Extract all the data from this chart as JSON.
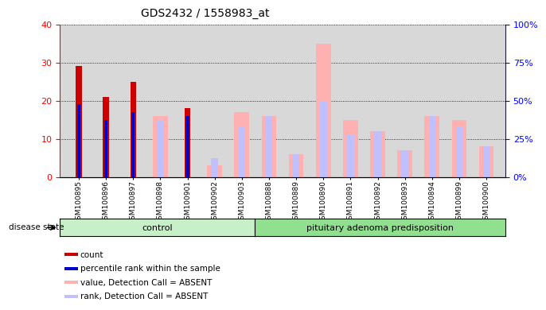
{
  "title": "GDS2432 / 1558983_at",
  "samples": [
    "GSM100895",
    "GSM100896",
    "GSM100897",
    "GSM100898",
    "GSM100901",
    "GSM100902",
    "GSM100903",
    "GSM100888",
    "GSM100889",
    "GSM100890",
    "GSM100891",
    "GSM100892",
    "GSM100893",
    "GSM100894",
    "GSM100899",
    "GSM100900"
  ],
  "count_values": [
    29,
    21,
    25,
    0,
    18,
    0,
    0,
    0,
    0,
    0,
    0,
    0,
    0,
    0,
    0,
    0
  ],
  "percentile_values": [
    19,
    15,
    17,
    0,
    16,
    0,
    0,
    0,
    0,
    0,
    0,
    0,
    0,
    0,
    0,
    0
  ],
  "absent_value": [
    0,
    0,
    0,
    16,
    0,
    3,
    17,
    16,
    6,
    35,
    15,
    12,
    7,
    16,
    15,
    8
  ],
  "absent_rank": [
    0,
    0,
    0,
    15,
    0,
    5,
    13,
    16,
    6,
    20,
    11,
    12,
    7,
    16,
    13,
    8
  ],
  "ylim_left": [
    0,
    40
  ],
  "ylim_right": [
    0,
    100
  ],
  "yticks_left": [
    0,
    10,
    20,
    30,
    40
  ],
  "yticks_right": [
    0,
    25,
    50,
    75,
    100
  ],
  "color_count": "#cc0000",
  "color_percentile": "#0000cc",
  "color_absent_value": "#ffb0b0",
  "color_absent_rank": "#c0c0ff",
  "bg_color": "#d8d8d8",
  "control_bg": "#c8f0c8",
  "adenoma_bg": "#90e090",
  "disease_label": "disease state",
  "group1_label": "control",
  "group2_label": "pituitary adenoma predisposition",
  "legend_items": [
    [
      "#cc0000",
      "count"
    ],
    [
      "#0000cc",
      "percentile rank within the sample"
    ],
    [
      "#ffb0b0",
      "value, Detection Call = ABSENT"
    ],
    [
      "#c0c0ff",
      "rank, Detection Call = ABSENT"
    ]
  ]
}
